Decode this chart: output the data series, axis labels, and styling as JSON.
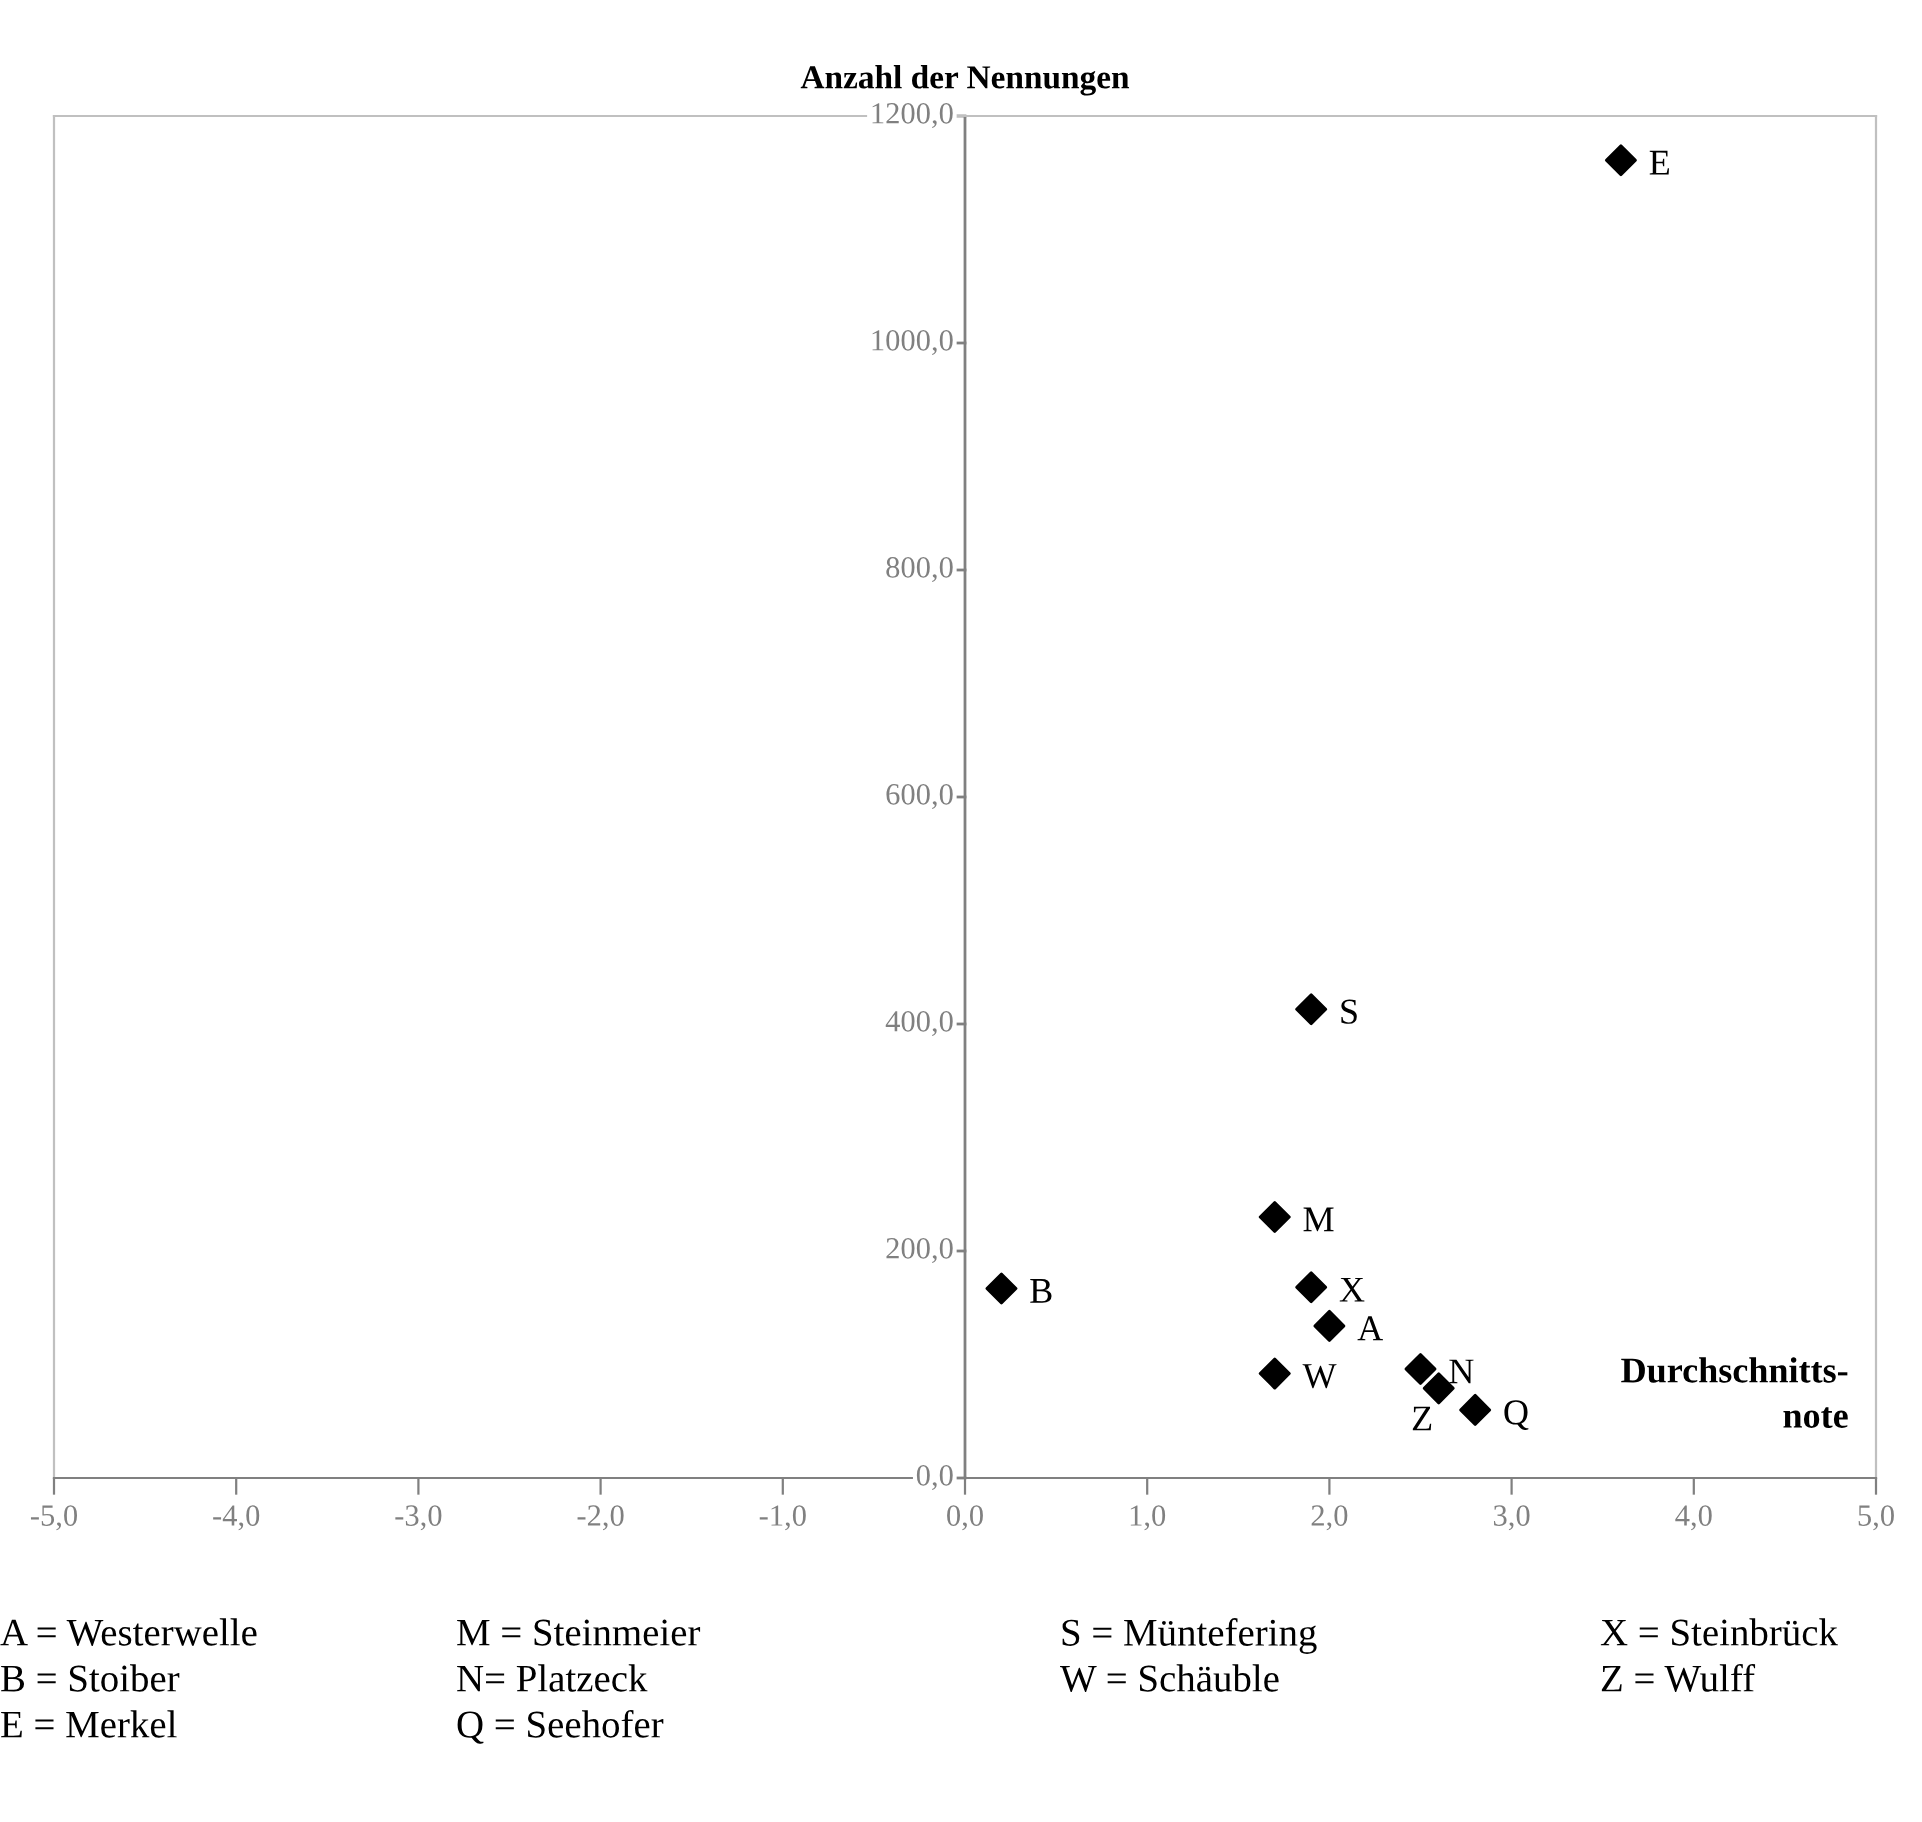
{
  "chart_data": {
    "type": "scatter",
    "ylabel": "Anzahl der Nennungen",
    "xlabel": "Durchschnitts-\nnote",
    "x": [
      0.2,
      1.9,
      1.7,
      1.9,
      2.0,
      1.7,
      2.5,
      2.6,
      2.8,
      3.6
    ],
    "series": [
      {
        "color": "#000000",
        "values": [
          167,
          413,
          230,
          168,
          134,
          92,
          96,
          79,
          60,
          1161
        ]
      }
    ],
    "marker": "diamond",
    "grid": false,
    "legend": false,
    "xlim": [
      -5,
      5
    ],
    "xticks": [
      {
        "value": -5,
        "label": "-5,0"
      },
      {
        "value": -4,
        "label": "-4,0"
      },
      {
        "value": -3,
        "label": "-3,0"
      },
      {
        "value": -2,
        "label": "-2,0"
      },
      {
        "value": -1,
        "label": "-1,0"
      },
      {
        "value": 0,
        "label": "0,0"
      },
      {
        "value": 1,
        "label": "1,0"
      },
      {
        "value": 2,
        "label": "2,0"
      },
      {
        "value": 3,
        "label": "3,0"
      },
      {
        "value": 4,
        "label": "4,0"
      },
      {
        "value": 5,
        "label": "5,0"
      }
    ],
    "ylim": [
      0,
      1200
    ],
    "yticks": [
      {
        "value": 0,
        "label": "0,0"
      },
      {
        "value": 200,
        "label": "200,0"
      },
      {
        "value": 400,
        "label": "400,0"
      },
      {
        "value": 600,
        "label": "600,0"
      },
      {
        "value": 800,
        "label": "800,0"
      },
      {
        "value": 1000,
        "label": "1000,0"
      },
      {
        "value": 1200,
        "label": "1200,0"
      }
    ],
    "annotations": [
      {
        "text": "B",
        "x": 0.2,
        "y": 167
      },
      {
        "text": "S",
        "x": 1.9,
        "y": 413
      },
      {
        "text": "M",
        "x": 1.7,
        "y": 230
      },
      {
        "text": "X",
        "x": 1.9,
        "y": 168
      },
      {
        "text": "A",
        "x": 2.0,
        "y": 134
      },
      {
        "text": "W",
        "x": 1.7,
        "y": 92
      },
      {
        "text": "N",
        "x": 2.5,
        "y": 96
      },
      {
        "text": "Z",
        "x": 2.6,
        "y": 79
      },
      {
        "text": "Q",
        "x": 2.8,
        "y": 60
      },
      {
        "text": "E",
        "x": 3.6,
        "y": 1161
      },
      "A = Westerwelle",
      "M = Steinmeier",
      "S = Müntefering",
      "X = Steinbrück",
      "B = Stoiber",
      "N= Platzeck",
      "W = Schäuble",
      "Z = Wulff",
      "E = Merkel",
      "Q = Seehofer"
    ]
  }
}
